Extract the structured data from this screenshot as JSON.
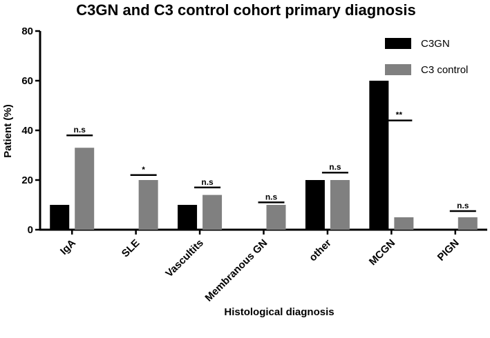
{
  "chart_data": {
    "type": "bar",
    "title": "C3GN and C3 control cohort primary diagnosis",
    "xlabel": "Histological diagnosis",
    "ylabel": "Patient (%)",
    "ylim": [
      0,
      80
    ],
    "yticks": [
      0,
      20,
      40,
      60,
      80
    ],
    "categories": [
      "IgA",
      "SLE",
      "Vascultits",
      "Membranous GN",
      "other",
      "MCGN",
      "PIGN"
    ],
    "series": [
      {
        "name": "C3GN",
        "color": "#000000",
        "values": [
          10,
          0,
          10,
          0,
          20,
          60,
          0
        ]
      },
      {
        "name": "C3 control",
        "color": "#808080",
        "values": [
          33,
          20,
          14,
          10,
          20,
          5,
          5
        ]
      }
    ],
    "annotations": [
      "n.s",
      "*",
      "n.s",
      "n.s",
      "n.s",
      "**",
      "n.s"
    ],
    "annotation_levels": [
      38,
      22,
      17,
      11,
      23,
      44,
      7.5
    ],
    "legend_position": "top-right",
    "grid": false
  }
}
